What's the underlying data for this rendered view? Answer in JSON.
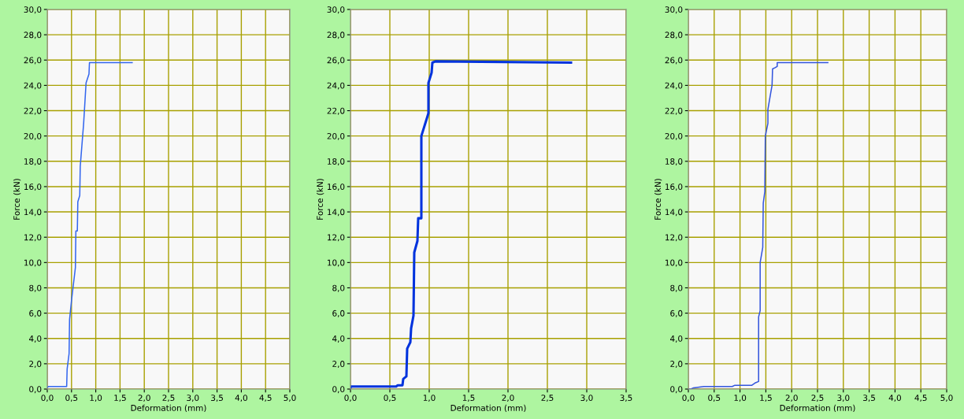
{
  "chart_data": [
    {
      "type": "line",
      "xlabel": "Deformation (mm)",
      "ylabel": "Force (kN)",
      "grid": true,
      "xlim": [
        0,
        5
      ],
      "ylim": [
        0,
        30
      ],
      "xticks": [
        {
          "value": 0,
          "label": "0,0"
        },
        {
          "value": 0.5,
          "label": "0,5"
        },
        {
          "value": 1,
          "label": "1,0"
        },
        {
          "value": 1.5,
          "label": "1,5"
        },
        {
          "value": 2,
          "label": "2,0"
        },
        {
          "value": 2.5,
          "label": "2,5"
        },
        {
          "value": 3,
          "label": "3,0"
        },
        {
          "value": 3.5,
          "label": "3,5"
        },
        {
          "value": 4,
          "label": "4,0"
        },
        {
          "value": 4.5,
          "label": "4,5"
        },
        {
          "value": 5,
          "label": "5,0"
        }
      ],
      "yticks": [
        {
          "value": 0,
          "label": "0,0"
        },
        {
          "value": 2,
          "label": "2,0"
        },
        {
          "value": 4,
          "label": "4,0"
        },
        {
          "value": 6,
          "label": "6,0"
        },
        {
          "value": 8,
          "label": "8,0"
        },
        {
          "value": 10,
          "label": "10,0"
        },
        {
          "value": 12,
          "label": "12,0"
        },
        {
          "value": 14,
          "label": "14,0"
        },
        {
          "value": 16,
          "label": "16,0"
        },
        {
          "value": 18,
          "label": "18,0"
        },
        {
          "value": 20,
          "label": "20,0"
        },
        {
          "value": 22,
          "label": "22,0"
        },
        {
          "value": 24,
          "label": "24,0"
        },
        {
          "value": 26,
          "label": "26,0"
        },
        {
          "value": 28,
          "label": "28,0"
        },
        {
          "value": 30,
          "label": "30,0"
        }
      ],
      "series": [
        {
          "color": "#3366ee",
          "x": [
            0,
            0.02,
            0.4,
            0.41,
            0.45,
            0.46,
            0.5,
            0.58,
            0.59,
            0.62,
            0.63,
            0.67,
            0.68,
            0.75,
            0.8,
            0.86,
            0.87,
            1.75
          ],
          "values": [
            0.1,
            0.2,
            0.2,
            1.6,
            2.8,
            5.5,
            7,
            9.6,
            12.5,
            12.5,
            14.8,
            15.3,
            17.6,
            21,
            24.2,
            24.9,
            25.8,
            25.8
          ]
        }
      ]
    },
    {
      "type": "line",
      "xlabel": "Deformation (mm)",
      "ylabel": "Force (kN)",
      "grid": true,
      "xlim": [
        0,
        3.5
      ],
      "ylim": [
        0,
        30
      ],
      "xticks": [
        {
          "value": 0,
          "label": "0,0"
        },
        {
          "value": 0.5,
          "label": "0,5"
        },
        {
          "value": 1,
          "label": "1,0"
        },
        {
          "value": 1.5,
          "label": "1,5"
        },
        {
          "value": 2,
          "label": "2,0"
        },
        {
          "value": 2.5,
          "label": "2,5"
        },
        {
          "value": 3,
          "label": "3,0"
        },
        {
          "value": 3.5,
          "label": "3,5"
        }
      ],
      "yticks": [
        {
          "value": 0,
          "label": "0,0"
        },
        {
          "value": 2,
          "label": "2,0"
        },
        {
          "value": 4,
          "label": "4,0"
        },
        {
          "value": 6,
          "label": "6,0"
        },
        {
          "value": 8,
          "label": "8,0"
        },
        {
          "value": 10,
          "label": "10,0"
        },
        {
          "value": 12,
          "label": "12,0"
        },
        {
          "value": 14,
          "label": "14,0"
        },
        {
          "value": 16,
          "label": "16,0"
        },
        {
          "value": 18,
          "label": "18,0"
        },
        {
          "value": 20,
          "label": "20,0"
        },
        {
          "value": 22,
          "label": "22,0"
        },
        {
          "value": 24,
          "label": "24,0"
        },
        {
          "value": 26,
          "label": "26,0"
        },
        {
          "value": 28,
          "label": "28,0"
        },
        {
          "value": 30,
          "label": "30,0"
        }
      ],
      "series": [
        {
          "color": "#0033dd",
          "x": [
            0,
            0.01,
            0.58,
            0.6,
            0.66,
            0.67,
            0.71,
            0.72,
            0.76,
            0.77,
            0.8,
            0.81,
            0.85,
            0.86,
            0.9,
            0.9,
            0.99,
            0.99,
            1.03,
            1.04,
            1.08,
            2.8
          ],
          "values": [
            0.1,
            0.2,
            0.2,
            0.3,
            0.3,
            0.8,
            1,
            3.2,
            3.7,
            4.8,
            5.8,
            10.8,
            11.7,
            13.5,
            13.5,
            20,
            21.8,
            24.2,
            25,
            25.8,
            25.9,
            25.8
          ]
        }
      ]
    },
    {
      "type": "line",
      "xlabel": "Deformation (mm)",
      "ylabel": "Force (kN)",
      "grid": true,
      "xlim": [
        0,
        5
      ],
      "ylim": [
        0,
        30
      ],
      "xticks": [
        {
          "value": 0,
          "label": "0,0"
        },
        {
          "value": 0.5,
          "label": "0,5"
        },
        {
          "value": 1,
          "label": "1,0"
        },
        {
          "value": 1.5,
          "label": "1,5"
        },
        {
          "value": 2,
          "label": "2,0"
        },
        {
          "value": 2.5,
          "label": "2,5"
        },
        {
          "value": 3,
          "label": "3,0"
        },
        {
          "value": 3.5,
          "label": "3,5"
        },
        {
          "value": 4,
          "label": "4,0"
        },
        {
          "value": 4.5,
          "label": "4,5"
        },
        {
          "value": 5,
          "label": "5,0"
        }
      ],
      "yticks": [
        {
          "value": 0,
          "label": "0,0"
        },
        {
          "value": 2,
          "label": "2,0"
        },
        {
          "value": 4,
          "label": "4,0"
        },
        {
          "value": 6,
          "label": "6,0"
        },
        {
          "value": 8,
          "label": "8,0"
        },
        {
          "value": 10,
          "label": "10,0"
        },
        {
          "value": 12,
          "label": "12,0"
        },
        {
          "value": 14,
          "label": "14,0"
        },
        {
          "value": 16,
          "label": "16,0"
        },
        {
          "value": 18,
          "label": "18,0"
        },
        {
          "value": 20,
          "label": "20,0"
        },
        {
          "value": 22,
          "label": "22,0"
        },
        {
          "value": 24,
          "label": "24,0"
        },
        {
          "value": 26,
          "label": "26,0"
        },
        {
          "value": 28,
          "label": "28,0"
        },
        {
          "value": 30,
          "label": "30,0"
        }
      ],
      "series": [
        {
          "color": "#3355dd",
          "x": [
            0,
            0.05,
            0.1,
            0.3,
            0.85,
            0.9,
            1.23,
            1.3,
            1.36,
            1.36,
            1.39,
            1.39,
            1.44,
            1.45,
            1.48,
            1.49,
            1.54,
            1.54,
            1.59,
            1.62,
            1.63,
            1.68,
            1.72,
            1.72,
            2.7
          ],
          "values": [
            0,
            0,
            0.1,
            0.2,
            0.2,
            0.3,
            0.3,
            0.5,
            0.6,
            5.7,
            6.2,
            10,
            11.2,
            14.7,
            15.6,
            20,
            21,
            22.1,
            23.3,
            24,
            25.3,
            25.4,
            25.5,
            25.8,
            25.8
          ]
        }
      ]
    }
  ]
}
